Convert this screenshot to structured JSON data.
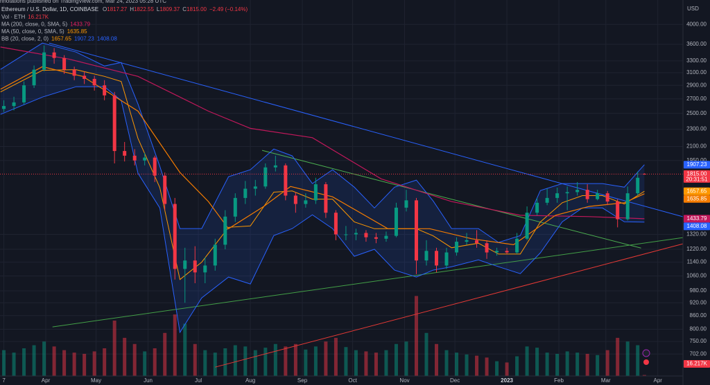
{
  "header": {
    "attribution": "nnotations published on TradingView.com, Mar 24, 2023 05:28 UTC",
    "symbol": "Ethereum / U.S. Dollar, 1D, COINBASE",
    "ohlc_color": "#f23645",
    "ohlc": [
      {
        "key": "O",
        "value": "1817.27"
      },
      {
        "key": "H",
        "value": "1822.55"
      },
      {
        "key": "L",
        "value": "1809.37"
      },
      {
        "key": "C",
        "value": "1815.00"
      }
    ],
    "change": "−2.49 (−0.14%)",
    "indicators": [
      {
        "name": "Vol · ETH",
        "values": [
          "16.217K"
        ],
        "colors": [
          "#f23645"
        ]
      },
      {
        "name": "MA (200, close, 0, SMA, 5)",
        "values": [
          "1433.79"
        ],
        "colors": [
          "#e91e63"
        ]
      },
      {
        "name": "MA (50, close, 0, SMA, 5)",
        "values": [
          "1635.85"
        ],
        "colors": [
          "#ff9800"
        ]
      },
      {
        "name": "BB (20, close, 2, 0)",
        "values": [
          "1657.65",
          "1907.23",
          "1408.08"
        ],
        "colors": [
          "#ff9800",
          "#2962ff",
          "#2962ff"
        ]
      }
    ]
  },
  "chart_data": {
    "type": "candlestick",
    "log_scale": true,
    "grid": true,
    "currency": "USD",
    "ylim": [
      625,
      4550
    ],
    "yticks": [
      {
        "value": 4000,
        "label": "4000.00"
      },
      {
        "value": 3600,
        "label": "3600.00"
      },
      {
        "value": 3300,
        "label": "3300.00"
      },
      {
        "value": 3100,
        "label": "3100.00"
      },
      {
        "value": 2900,
        "label": "2900.00"
      },
      {
        "value": 2700,
        "label": "2700.00"
      },
      {
        "value": 2500,
        "label": "2500.00"
      },
      {
        "value": 2300,
        "label": "2300.00"
      },
      {
        "value": 2100,
        "label": "2100.00"
      },
      {
        "value": 1950,
        "label": "1950.00"
      },
      {
        "value": 1320,
        "label": "1320.00"
      },
      {
        "value": 1220,
        "label": "1220.00"
      },
      {
        "value": 1140,
        "label": "1140.00"
      },
      {
        "value": 1060,
        "label": "1060.00"
      },
      {
        "value": 980,
        "label": "980.00"
      },
      {
        "value": 920,
        "label": "920.00"
      },
      {
        "value": 860,
        "label": "860.00"
      },
      {
        "value": 800,
        "label": "800.00"
      },
      {
        "value": 750,
        "label": "750.00"
      },
      {
        "value": 702,
        "label": "702.00"
      }
    ],
    "xlim": [
      62.7,
      470
    ],
    "xticks": [
      {
        "value": 65,
        "label": "7"
      },
      {
        "value": 90,
        "label": "Apr"
      },
      {
        "value": 120,
        "label": "May"
      },
      {
        "value": 151,
        "label": "Jun"
      },
      {
        "value": 181,
        "label": "Jul"
      },
      {
        "value": 212,
        "label": "Aug"
      },
      {
        "value": 243,
        "label": "Sep"
      },
      {
        "value": 273,
        "label": "Oct"
      },
      {
        "value": 304,
        "label": "Nov"
      },
      {
        "value": 334,
        "label": "Dec"
      },
      {
        "value": 365,
        "label": "2023",
        "bold": true
      },
      {
        "value": 396,
        "label": "Feb"
      },
      {
        "value": 424,
        "label": "Mar"
      },
      {
        "value": 455,
        "label": "Apr"
      }
    ],
    "up_color": "#089981",
    "down_color": "#f23645",
    "candles": {
      "x": [
        65,
        71,
        77,
        83,
        89,
        95,
        101,
        107,
        113,
        119,
        125,
        131,
        137,
        143,
        149,
        155,
        161,
        167,
        173,
        179,
        185,
        191,
        197,
        203,
        209,
        215,
        221,
        227,
        233,
        239,
        245,
        251,
        257,
        263,
        269,
        275,
        281,
        287,
        293,
        299,
        305,
        311,
        317,
        323,
        329,
        335,
        341,
        347,
        353,
        359,
        365,
        371,
        377,
        383,
        389,
        395,
        401,
        407,
        413,
        419,
        425,
        431,
        437,
        443,
        447
      ],
      "open": [
        2560,
        2600,
        2650,
        2900,
        3150,
        3450,
        3350,
        3150,
        3050,
        3000,
        2900,
        2750,
        2050,
        2000,
        1950,
        1980,
        1800,
        1550,
        1100,
        1150,
        1080,
        1120,
        1250,
        1450,
        1600,
        1680,
        1700,
        1880,
        1900,
        1620,
        1550,
        1580,
        1720,
        1480,
        1320,
        1320,
        1330,
        1300,
        1290,
        1310,
        1520,
        1580,
        1150,
        1210,
        1120,
        1200,
        1270,
        1280,
        1260,
        1200,
        1210,
        1200,
        1290,
        1480,
        1560,
        1600,
        1640,
        1650,
        1670,
        1590,
        1640,
        1570,
        1430,
        1640,
        1817.27
      ],
      "high": [
        2680,
        2730,
        2960,
        3220,
        3580,
        3530,
        3400,
        3200,
        3120,
        3050,
        2980,
        2800,
        2150,
        2070,
        2030,
        2000,
        1830,
        1600,
        1230,
        1240,
        1170,
        1290,
        1500,
        1640,
        1750,
        1760,
        1920,
        2000,
        1920,
        1650,
        1640,
        1780,
        1740,
        1500,
        1380,
        1360,
        1350,
        1330,
        1340,
        1560,
        1670,
        1600,
        1280,
        1230,
        1230,
        1300,
        1330,
        1350,
        1280,
        1230,
        1230,
        1330,
        1530,
        1600,
        1680,
        1690,
        1700,
        1740,
        1720,
        1670,
        1660,
        1590,
        1700,
        1840,
        1822.55
      ],
      "low": [
        2520,
        2540,
        2620,
        2860,
        3120,
        3250,
        3080,
        2980,
        2920,
        2820,
        2680,
        1920,
        1940,
        1900,
        1900,
        1740,
        1500,
        1040,
        920,
        1020,
        1020,
        1090,
        1220,
        1410,
        1550,
        1620,
        1680,
        1840,
        1580,
        1480,
        1520,
        1550,
        1440,
        1280,
        1280,
        1280,
        1270,
        1260,
        1270,
        1300,
        1490,
        1070,
        1120,
        1080,
        1100,
        1180,
        1250,
        1230,
        1160,
        1180,
        1190,
        1190,
        1280,
        1460,
        1540,
        1560,
        1500,
        1620,
        1560,
        1580,
        1540,
        1370,
        1420,
        1620,
        1809.37
      ],
      "close": [
        2600,
        2650,
        2900,
        3150,
        3450,
        3350,
        3150,
        3050,
        3000,
        2900,
        2750,
        2050,
        2000,
        1950,
        1980,
        1800,
        1550,
        1100,
        1150,
        1080,
        1120,
        1250,
        1450,
        1600,
        1680,
        1700,
        1880,
        1900,
        1620,
        1550,
        1580,
        1720,
        1480,
        1320,
        1320,
        1330,
        1300,
        1290,
        1310,
        1520,
        1580,
        1150,
        1210,
        1120,
        1200,
        1270,
        1280,
        1260,
        1200,
        1210,
        1200,
        1290,
        1480,
        1560,
        1600,
        1640,
        1650,
        1670,
        1590,
        1640,
        1570,
        1430,
        1640,
        1780,
        1815
      ],
      "volume": [
        420,
        380,
        450,
        500,
        560,
        480,
        420,
        380,
        360,
        400,
        450,
        900,
        620,
        520,
        400,
        450,
        700,
        1000,
        850,
        520,
        420,
        380,
        450,
        500,
        480,
        420,
        460,
        520,
        480,
        520,
        430,
        480,
        560,
        620,
        470,
        420,
        400,
        380,
        420,
        520,
        560,
        1300,
        700,
        520,
        420,
        380,
        350,
        330,
        300,
        240,
        220,
        320,
        480,
        460,
        380,
        360,
        400,
        380,
        360,
        340,
        420,
        620,
        560,
        500,
        16.217
      ]
    },
    "vol_ylim": [
      0,
      1800
    ],
    "bands": {
      "color": "#2962ff",
      "fill": "rgba(41,98,255,0.13)",
      "basis_color": "#ff9800",
      "x": [
        63,
        88,
        108,
        125,
        135,
        145,
        158,
        170,
        183,
        199,
        212,
        226,
        237,
        249,
        261,
        274,
        286,
        298,
        311,
        321,
        332,
        348,
        360,
        373,
        385,
        398,
        410,
        422,
        435,
        447
      ],
      "upper": [
        3154,
        3624,
        3456,
        3212,
        3272,
        2627,
        1891,
        1361,
        1361,
        1790,
        1857,
        2072,
        1998,
        1726,
        1857,
        1694,
        1518,
        1694,
        1758,
        1575,
        1361,
        1361,
        1265,
        1312,
        1664,
        1726,
        1726,
        1726,
        1694,
        1907.23
      ],
      "basis": [
        2800,
        3140,
        3150,
        3040,
        2960,
        2190,
        1690,
        1040,
        1140,
        1370,
        1380,
        1650,
        1660,
        1590,
        1590,
        1410,
        1360,
        1360,
        1360,
        1310,
        1230,
        1260,
        1190,
        1190,
        1410,
        1560,
        1620,
        1620,
        1550,
        1657.65
      ],
      "lower": [
        2487,
        2725,
        2879,
        2879,
        2676,
        1823,
        1518,
        787,
        944,
        1054,
        1016,
        1312,
        1361,
        1464,
        1361,
        1176,
        1220,
        1093,
        1054,
        1093,
        1113,
        1154,
        1113,
        1073,
        1198,
        1411,
        1518,
        1518,
        1411,
        1408.08
      ]
    },
    "lines": [
      {
        "color": "#c2185b",
        "x": [
          63,
          104,
          145,
          187,
          212,
          249,
          290,
          332,
          373,
          414,
          447
        ],
        "values": [
          3550,
          3330,
          3040,
          2530,
          2310,
          2200,
          1770,
          1570,
          1460,
          1450,
          1433.79
        ]
      },
      {
        "color": "#f57c00",
        "x": [
          63,
          88,
          112,
          145,
          170,
          187,
          199,
          220,
          236,
          261,
          294,
          319,
          344,
          369,
          394,
          414,
          435,
          447
        ],
        "values": [
          2840,
          3200,
          3040,
          2530,
          1830,
          1570,
          1360,
          1530,
          1700,
          1610,
          1360,
          1360,
          1290,
          1250,
          1460,
          1530,
          1560,
          1635.85
        ]
      }
    ],
    "trendlines": [
      {
        "color": "#2962ff",
        "x": [
          92,
          470
        ],
        "values": [
          3624,
          1449
        ]
      },
      {
        "color": "#4caf50",
        "x": [
          219,
          445
        ],
        "values": [
          2057,
          1228
        ]
      },
      {
        "color": "#43a047",
        "x": [
          94,
          470
        ],
        "values": [
          810,
          1298
        ]
      },
      {
        "color": "#e53935",
        "x": [
          191,
          470
        ],
        "values": [
          655,
          1256
        ]
      }
    ],
    "price_line": {
      "value": 1815,
      "color": "#f23645"
    },
    "price_boxes": [
      {
        "value": 1907.23,
        "color": "#2962ff"
      },
      {
        "value": 1815,
        "label": "1815.00",
        "color": "#f23645"
      },
      {
        "value": 1657.65,
        "color": "#ff9800"
      },
      {
        "value": 1635.85,
        "color": "#f57c00"
      },
      {
        "value": 1433.79,
        "color": "#c2185b"
      },
      {
        "value": 1408.08,
        "color": "#2962ff"
      }
    ],
    "countdown": "20:31:51",
    "volume_box": {
      "value": 16.217,
      "label": "16.217K",
      "color": "#f23645"
    }
  }
}
